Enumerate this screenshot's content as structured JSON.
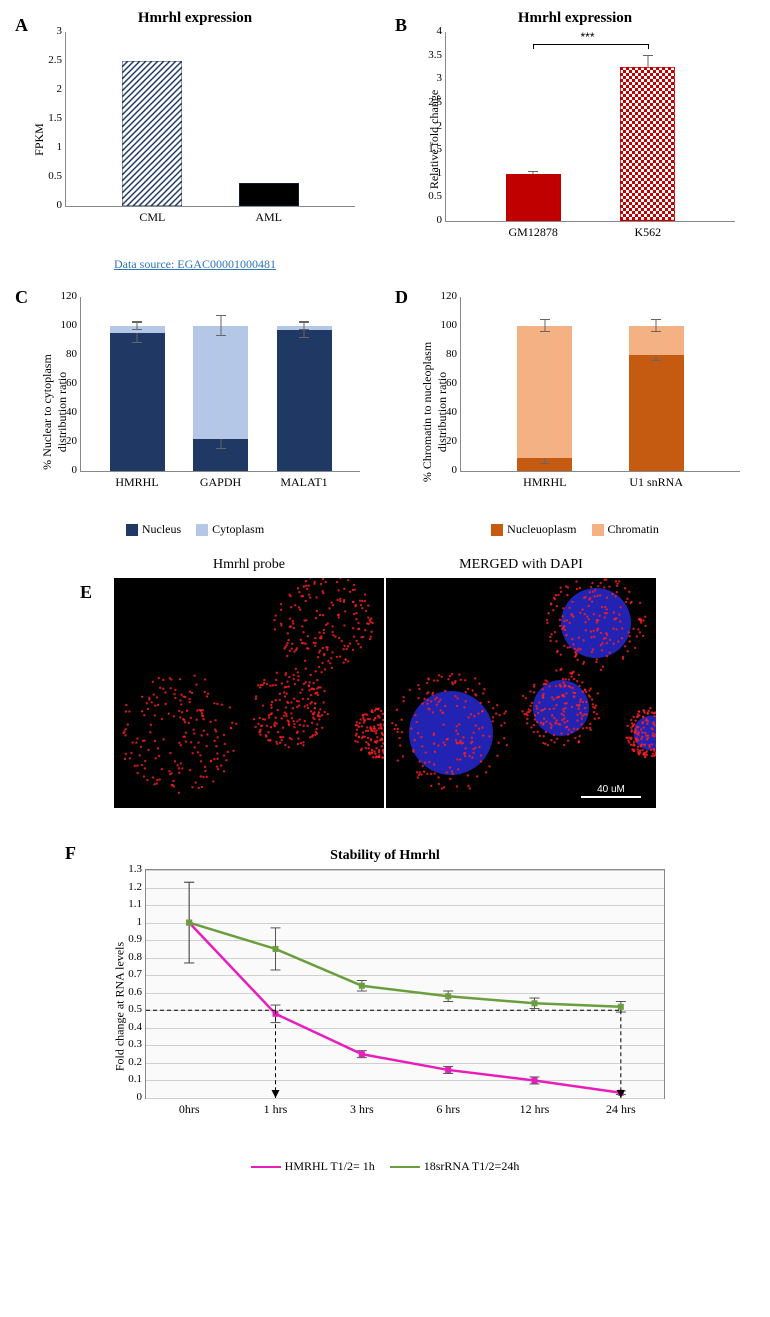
{
  "panelA": {
    "label": "A",
    "title": "Hmrhl expression",
    "ylabel": "FPKM",
    "ylim": [
      0,
      3
    ],
    "ytick_step": 0.5,
    "categories": [
      "CML",
      "AML"
    ],
    "values": [
      2.5,
      0.4
    ],
    "bar_colors": [
      "hatch-navy",
      "#000000"
    ],
    "data_source": "Data source: EGAC00001000481",
    "title_fontsize": 15,
    "label_fontsize": 12
  },
  "panelB": {
    "label": "B",
    "title": "Hmrhl expression",
    "ylabel": "Relative fold change",
    "ylim": [
      0,
      4
    ],
    "ytick_step": 0.5,
    "categories": [
      "GM12878",
      "K562"
    ],
    "values": [
      1.0,
      3.25
    ],
    "errors": [
      0.03,
      0.25
    ],
    "bar_colors": [
      "#c00000",
      "checker-red"
    ],
    "significance": "***",
    "title_fontsize": 15,
    "label_fontsize": 12
  },
  "panelC": {
    "label": "C",
    "ylabel": "% Nuclear to cytoplasm distribution ratio",
    "ylim": [
      0,
      120
    ],
    "ytick_step": 20,
    "categories": [
      "HMRHL",
      "GAPDH",
      "MALAT1"
    ],
    "series": [
      {
        "name": "Nucleus",
        "color": "#1f3864",
        "values": [
          95,
          22,
          97
        ]
      },
      {
        "name": "Cytoplasm",
        "color": "#b4c7e7",
        "values": [
          5,
          78,
          3
        ]
      }
    ],
    "error_caps": [
      [
        7,
        3
      ],
      [
        7,
        7
      ],
      [
        5,
        3
      ]
    ],
    "label_fontsize": 12
  },
  "panelD": {
    "label": "D",
    "ylabel": "% Chromatin to nucleoplasm distribution ratio",
    "ylim": [
      0,
      120
    ],
    "ytick_step": 20,
    "categories": [
      "HMRHL",
      "U1 snRNA"
    ],
    "series": [
      {
        "name": "Nucleuoplasm",
        "color": "#c55a11",
        "values": [
          9,
          80
        ]
      },
      {
        "name": "Chromatin",
        "color": "#f4b183",
        "values": [
          91,
          20
        ]
      }
    ],
    "error_caps": [
      [
        4,
        4
      ],
      [
        4,
        4
      ]
    ],
    "label_fontsize": 12
  },
  "panelE": {
    "label": "E",
    "labels": [
      "Hmrhl probe",
      "MERGED with DAPI"
    ],
    "scalebar": "40 uM",
    "probe_color": "#ff2020",
    "dapi_color": "#3030ff"
  },
  "panelF": {
    "label": "F",
    "title": "Stability of Hmrhl",
    "ylabel": "Fold change at RNA levels",
    "ylim": [
      0,
      1.3
    ],
    "ytick_step": 0.1,
    "x_categories": [
      "0hrs",
      "1 hrs",
      "3 hrs",
      "6 hrs",
      "12 hrs",
      "24 hrs"
    ],
    "series": [
      {
        "name": "HMRHL T1/2= 1h",
        "color": "#e81ebc",
        "values": [
          1.0,
          0.48,
          0.25,
          0.16,
          0.1,
          0.03
        ],
        "errors": [
          0.23,
          0.05,
          0.02,
          0.02,
          0.02,
          0.01
        ]
      },
      {
        "name": "18srRNA T1/2=24h",
        "color": "#6b9e3e",
        "values": [
          1.0,
          0.85,
          0.64,
          0.58,
          0.54,
          0.52
        ],
        "errors": [
          0.23,
          0.12,
          0.03,
          0.03,
          0.03,
          0.03
        ]
      }
    ],
    "half_life_y": 0.5,
    "half_life_x_hmrhl": 1,
    "half_life_x_18s": 5,
    "title_fontsize": 14,
    "label_fontsize": 12
  },
  "colors": {
    "axis": "#888888",
    "grid": "#cccccc",
    "text": "#000000"
  }
}
